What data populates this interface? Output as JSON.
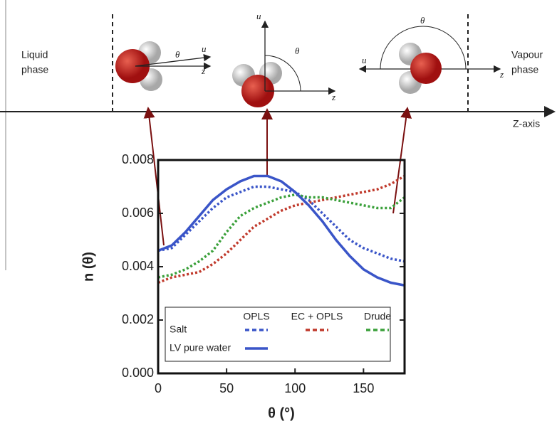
{
  "diagram": {
    "left_label": [
      "Liquid",
      "phase"
    ],
    "right_label": [
      "Vapour",
      "phase"
    ],
    "axis_label": "Z-axis",
    "vector_u": "u",
    "vector_z": "z",
    "angle": "θ"
  },
  "chart_data": {
    "type": "line",
    "xlabel": "θ (°)",
    "ylabel": "n (θ)",
    "x": [
      0,
      10,
      20,
      30,
      40,
      50,
      60,
      70,
      80,
      90,
      100,
      110,
      120,
      130,
      140,
      150,
      160,
      170,
      180
    ],
    "xlim": [
      0,
      180
    ],
    "xticks": [
      0,
      50,
      100,
      150
    ],
    "ylim": [
      0,
      0.008
    ],
    "yticks": [
      {
        "value": 0,
        "label": "0.000"
      },
      {
        "value": 0.002,
        "label": "0.002"
      },
      {
        "value": 0.004,
        "label": "0.004"
      },
      {
        "value": 0.006,
        "label": "0.006"
      },
      {
        "value": 0.008,
        "label": "0.008"
      }
    ],
    "series": [
      {
        "model": "OPLS",
        "system": "Salt",
        "color": "#3a55c8",
        "dashed": true,
        "values": [
          0.0046,
          0.0047,
          0.0052,
          0.0057,
          0.0062,
          0.0066,
          0.0068,
          0.007,
          0.007,
          0.0069,
          0.0068,
          0.0065,
          0.006,
          0.0055,
          0.005,
          0.0047,
          0.0045,
          0.0043,
          0.0042
        ]
      },
      {
        "model": "EC + OPLS",
        "system": "Salt",
        "color": "#c0392b",
        "dashed": true,
        "values": [
          0.0034,
          0.0036,
          0.0037,
          0.0038,
          0.0041,
          0.0045,
          0.005,
          0.0055,
          0.0058,
          0.0061,
          0.0063,
          0.0064,
          0.0065,
          0.0066,
          0.0067,
          0.0068,
          0.0069,
          0.0071,
          0.0074
        ]
      },
      {
        "model": "Drude",
        "system": "Salt",
        "color": "#3aa03a",
        "dashed": true,
        "values": [
          0.0036,
          0.0037,
          0.0039,
          0.0042,
          0.0046,
          0.0053,
          0.0059,
          0.0062,
          0.0064,
          0.0066,
          0.0067,
          0.0066,
          0.0066,
          0.0065,
          0.0064,
          0.0063,
          0.0062,
          0.0062,
          0.0066
        ]
      },
      {
        "model": "OPLS",
        "system": "LV pure water",
        "color": "#3a55c8",
        "dashed": false,
        "values": [
          0.0046,
          0.0048,
          0.0053,
          0.0059,
          0.0065,
          0.0069,
          0.0072,
          0.0074,
          0.0074,
          0.0072,
          0.0068,
          0.0063,
          0.0057,
          0.005,
          0.0044,
          0.0039,
          0.0036,
          0.0034,
          0.0033
        ]
      }
    ]
  }
}
